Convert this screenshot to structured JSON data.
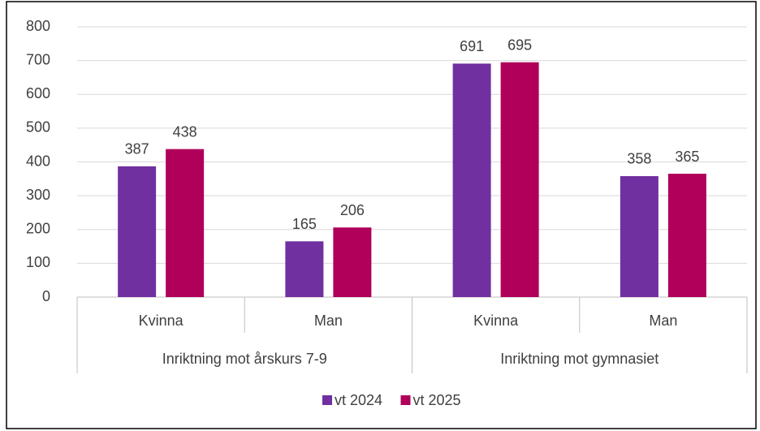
{
  "chart_data": {
    "type": "bar",
    "categories": [
      "Kvinna",
      "Man",
      "Kvinna",
      "Man"
    ],
    "groups": [
      "Inriktning mot årskurs 7-9",
      "Inriktning mot gymnasiet"
    ],
    "series": [
      {
        "name": "vt 2024",
        "color": "#7030a0",
        "values": [
          387,
          165,
          691,
          358
        ]
      },
      {
        "name": "vt 2025",
        "color": "#b0005a",
        "values": [
          438,
          206,
          695,
          365
        ]
      }
    ],
    "ylim": [
      0,
      800
    ],
    "yticks": [
      0,
      100,
      200,
      300,
      400,
      500,
      600,
      700,
      800
    ],
    "grid": true,
    "legend": "bottom"
  }
}
